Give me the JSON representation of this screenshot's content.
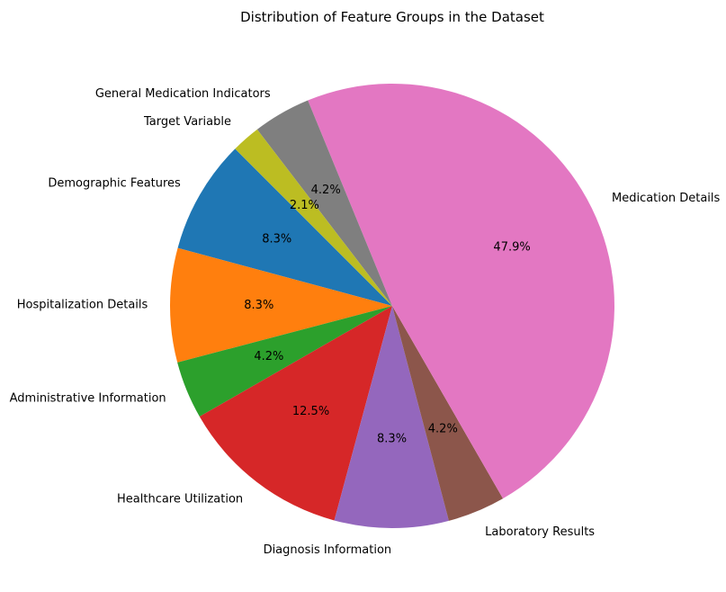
{
  "chart_data": {
    "type": "pie",
    "title": "Distribution of Feature Groups in the Dataset",
    "start_angle_deg": 135,
    "direction": "counterclockwise",
    "slices": [
      {
        "label": "Demographic Features",
        "value": 8.3,
        "pct_label": "8.3%",
        "color": "#1f77b4"
      },
      {
        "label": "Hospitalization Details",
        "value": 8.3,
        "pct_label": "8.3%",
        "color": "#ff7f0e"
      },
      {
        "label": "Administrative Information",
        "value": 4.2,
        "pct_label": "4.2%",
        "color": "#2ca02c"
      },
      {
        "label": "Healthcare Utilization",
        "value": 12.5,
        "pct_label": "12.5%",
        "color": "#d62728"
      },
      {
        "label": "Diagnosis Information",
        "value": 8.3,
        "pct_label": "8.3%",
        "color": "#9467bd"
      },
      {
        "label": "Laboratory Results",
        "value": 4.2,
        "pct_label": "4.2%",
        "color": "#8c564b"
      },
      {
        "label": "Medication Details",
        "value": 47.9,
        "pct_label": "47.9%",
        "color": "#e377c2"
      },
      {
        "label": "General Medication Indicators",
        "value": 4.2,
        "pct_label": "4.2%",
        "color": "#7f7f7f"
      },
      {
        "label": "Target Variable",
        "value": 2.1,
        "pct_label": "2.1%",
        "color": "#bcbd22"
      }
    ]
  }
}
